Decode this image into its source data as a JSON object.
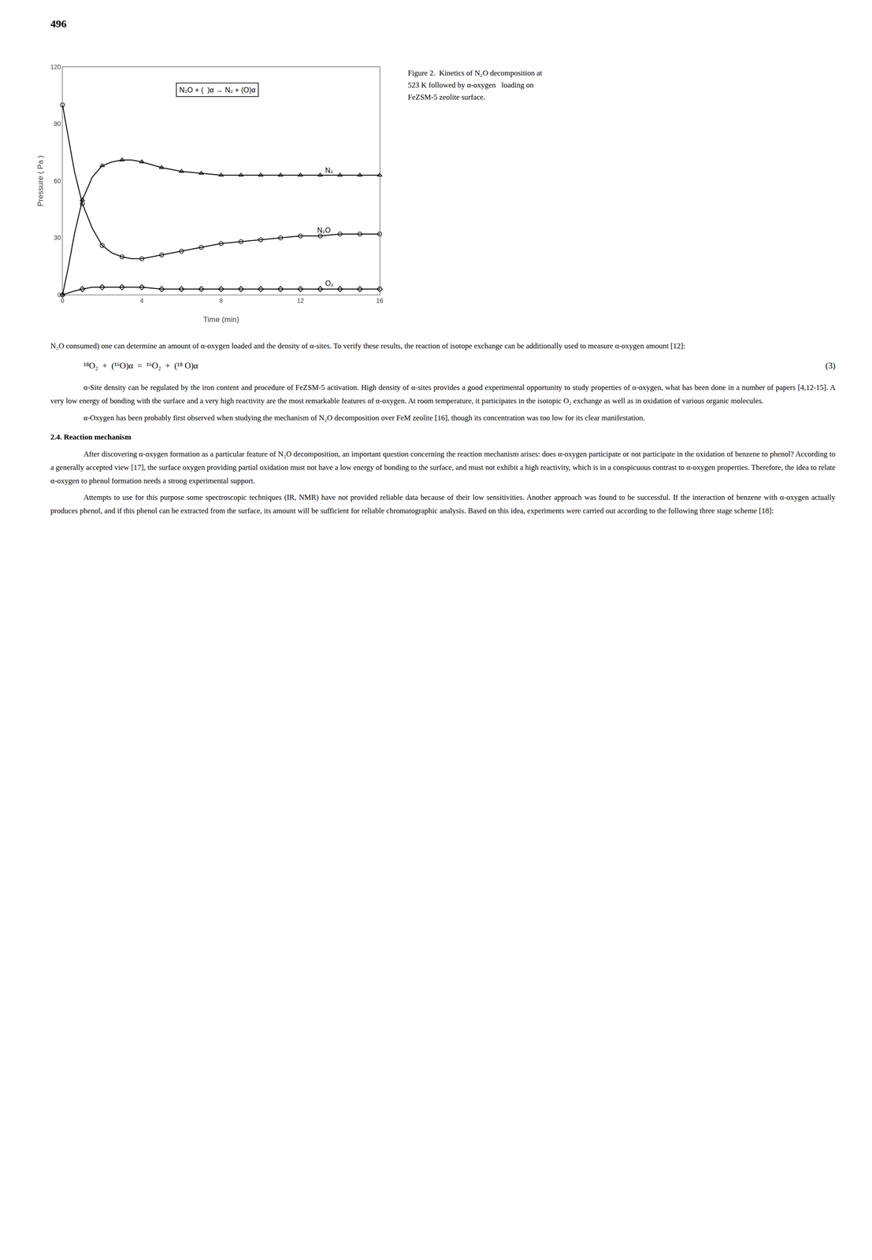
{
  "chart_data": {
    "type": "line",
    "page_number": "496",
    "caption": [
      "Figure 2.  Kinetics of N₂O decomposition at",
      "523 K followed by α-oxygen   loading on",
      "FeZSM-5 zeolite surface."
    ],
    "xlabel": "Time (min)",
    "ylabel": "Pressure ( Pa )",
    "xlim": [
      0,
      16
    ],
    "ylim": [
      0,
      120
    ],
    "xticks": [
      0,
      4,
      8,
      12,
      16
    ],
    "yticks": [
      0,
      30,
      60,
      90,
      120
    ],
    "grid": false,
    "series": [
      {
        "type": "line",
        "color": "#000000",
        "line_style": "solid",
        "x": [
          0,
          0.3,
          0.6,
          1.0,
          1.5,
          2.0,
          2.5,
          3.0,
          3.5,
          4.0,
          5.0,
          6.0,
          7.0,
          8.0,
          9.0,
          10.0,
          11.0,
          12.0,
          13.0,
          14.0,
          15.0,
          16.0
        ],
        "values": [
          0,
          15,
          32,
          50,
          62,
          68,
          70,
          71,
          71,
          70,
          67,
          65,
          64,
          63,
          63,
          63,
          63,
          63,
          63,
          63,
          63,
          63
        ]
      },
      {
        "type": "scatter",
        "color": "#000000",
        "marker": "triangle-up",
        "x": [
          0,
          1.0,
          2.0,
          3.0,
          4.0,
          5.0,
          6.0,
          7.0,
          8.0,
          9.0,
          10.0,
          11.0,
          12.0,
          13.0,
          14.0,
          15.0,
          16.0
        ],
        "values": [
          0,
          50,
          68,
          71,
          70,
          67,
          65,
          64,
          63,
          63,
          63,
          63,
          63,
          63,
          63,
          63,
          63
        ]
      },
      {
        "type": "line",
        "color": "#000000",
        "line_style": "solid",
        "x": [
          0,
          0.3,
          0.6,
          1.0,
          1.5,
          2.0,
          2.5,
          3.0,
          3.5,
          4.0,
          5.0,
          6.0,
          7.0,
          8.0,
          9.0,
          10.0,
          11.0,
          12.0,
          13.0,
          14.0,
          15.0,
          16.0
        ],
        "values": [
          100,
          82,
          65,
          48,
          35,
          26,
          22,
          20,
          19,
          19,
          21,
          23,
          25,
          27,
          28,
          29,
          30,
          31,
          31,
          32,
          32,
          32
        ]
      },
      {
        "type": "scatter",
        "color": "#000000",
        "marker": "circle",
        "x": [
          0,
          1.0,
          2.0,
          3.0,
          4.0,
          5.0,
          6.0,
          7.0,
          8.0,
          9.0,
          10.0,
          11.0,
          12.0,
          13.0,
          14.0,
          15.0,
          16.0
        ],
        "values": [
          100,
          48,
          26,
          20,
          19,
          21,
          23,
          25,
          27,
          28,
          29,
          30,
          31,
          31,
          32,
          32,
          32
        ]
      },
      {
        "type": "line",
        "color": "#000000",
        "line_style": "solid",
        "x": [
          0,
          0.3,
          0.6,
          1.0,
          1.5,
          2.0,
          2.5,
          3.0,
          3.5,
          4.0,
          5.0,
          6.0,
          7.0,
          8.0,
          9.0,
          10.0,
          11.0,
          12.0,
          13.0,
          14.0,
          15.0,
          16.0
        ],
        "values": [
          0,
          1,
          2,
          3,
          4,
          4,
          4,
          4,
          4,
          4,
          3,
          3,
          3,
          3,
          3,
          3,
          3,
          3,
          3,
          3,
          3,
          3
        ]
      },
      {
        "type": "scatter",
        "color": "#000000",
        "marker": "diamond",
        "x": [
          0,
          1.0,
          2.0,
          3.0,
          4.0,
          5.0,
          6.0,
          7.0,
          8.0,
          9.0,
          10.0,
          11.0,
          12.0,
          13.0,
          14.0,
          15.0,
          16.0
        ],
        "values": [
          0,
          3,
          4,
          4,
          4,
          3,
          3,
          3,
          3,
          3,
          3,
          3,
          3,
          3,
          3,
          3,
          3
        ]
      }
    ],
    "annotations": [
      {
        "text": "N₂",
        "x": 13.2,
        "y": 65.5
      },
      {
        "text": "N₂O",
        "x": 12.8,
        "y": 34
      },
      {
        "text": "O₂",
        "x": 13.2,
        "y": 6
      }
    ],
    "box_label": {
      "text": "N₂O + (  )α → N₂ + (O)α",
      "x": 7.8,
      "y": 108
    },
    "body": [
      {
        "kind": "continued",
        "text": "N₂O consumed) one can determine an amount of α-oxygen loaded and the density of α-sites. To verify these results, the reaction of isotope exchange can be additionally used to measure α-oxygen amount [12]:"
      },
      {
        "kind": "equation",
        "text": "¹⁸O₂  +  (¹⁶O)α  =  ¹⁶O₂  +  (¹⁸ O)α",
        "number": "(3)"
      },
      {
        "kind": "paragraph",
        "text": "α-Site density can be regulated by the iron content and procedure of FeZSM-5 activation. High density of α-sites provides a good experimental opportunity to study properties of α-oxygen, what has been done in a number of papers [4,12-15]. A very low energy of bonding with the surface and a very high reactivity are the most remarkable features of α-oxygen. At room temperature, it participates in the isotopic O₂ exchange as well as in oxidation of various organic molecules."
      },
      {
        "kind": "paragraph",
        "text": "α-Oxygen has been probably first observed when studying the mechanism of N₂O decomposition over FeM zeolite [16], though its concentration was too low for its clear manifestation."
      },
      {
        "kind": "heading",
        "text": "2.4. Reaction mechanism"
      },
      {
        "kind": "paragraph",
        "text": "After discovering α-oxygen formation as a particular feature of N₂O decomposition, an important question concerning the reaction mechanism arises: does α-oxygen participate or not participate in the oxidation of benzene to phenol? According to a generally accepted view [17], the surface oxygen providing partial oxidation must not have a low energy of bonding to the surface, and must not exhibit a high reactivity, which is in a conspicuous contrast to α-oxygen properties. Therefore, the  idea to relate α-oxygen to phenol formation needs a strong experimental support."
      },
      {
        "kind": "paragraph",
        "text": "Attempts to use for this purpose some spectroscopic techniques (IR, NMR) have not provided reliable data because of their low sensitivities. Another approach was found to be successful. If the interaction of benzene with α-oxygen actually produces phenol, and if this phenol can be extracted from the surface, its amount will be sufficient for reliable chromatographic analysis. Based on this idea, experiments were carried out according to the following three stage scheme [18]:"
      }
    ]
  }
}
